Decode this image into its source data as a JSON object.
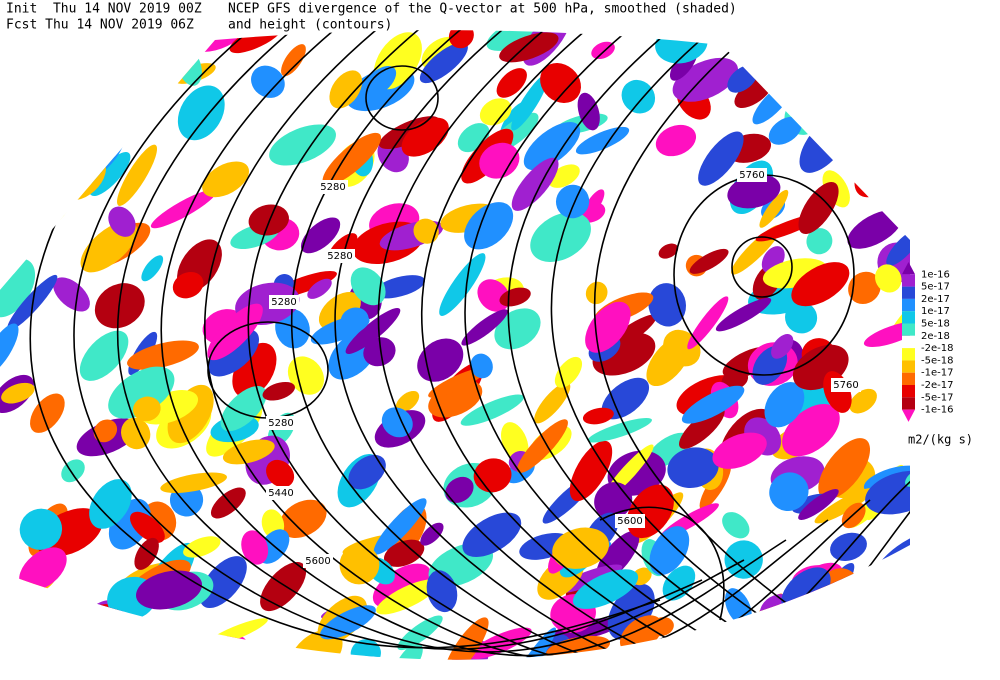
{
  "header": {
    "init": "Init  Thu 14 NOV 2019 00Z",
    "fcst": "Fcst Thu 14 NOV 2019 06Z",
    "title": "NCEP GFS divergence of the Q-vector at 500 hPa, smoothed (shaded)",
    "subtitle": "and height (contours)"
  },
  "contour_labels": [
    "5280",
    "5280",
    "5280",
    "5280",
    "5440",
    "5600",
    "5600",
    "5760",
    "5760"
  ],
  "colorbar": {
    "labels": [
      "1e-16",
      "5e-17",
      "2e-17",
      "1e-17",
      "5e-18",
      "2e-18",
      "-2e-18",
      "-5e-18",
      "-1e-17",
      "-2e-17",
      "-5e-17",
      "-1e-16"
    ],
    "colors": [
      "#7a00a8",
      "#a020d0",
      "#2848d8",
      "#2090ff",
      "#10c8e8",
      "#40e8c8",
      "#ffffff",
      "#ffff20",
      "#ffc000",
      "#ff6a00",
      "#e80000",
      "#b40010",
      "#ff10c0"
    ],
    "units": "m2/(kg s)"
  }
}
